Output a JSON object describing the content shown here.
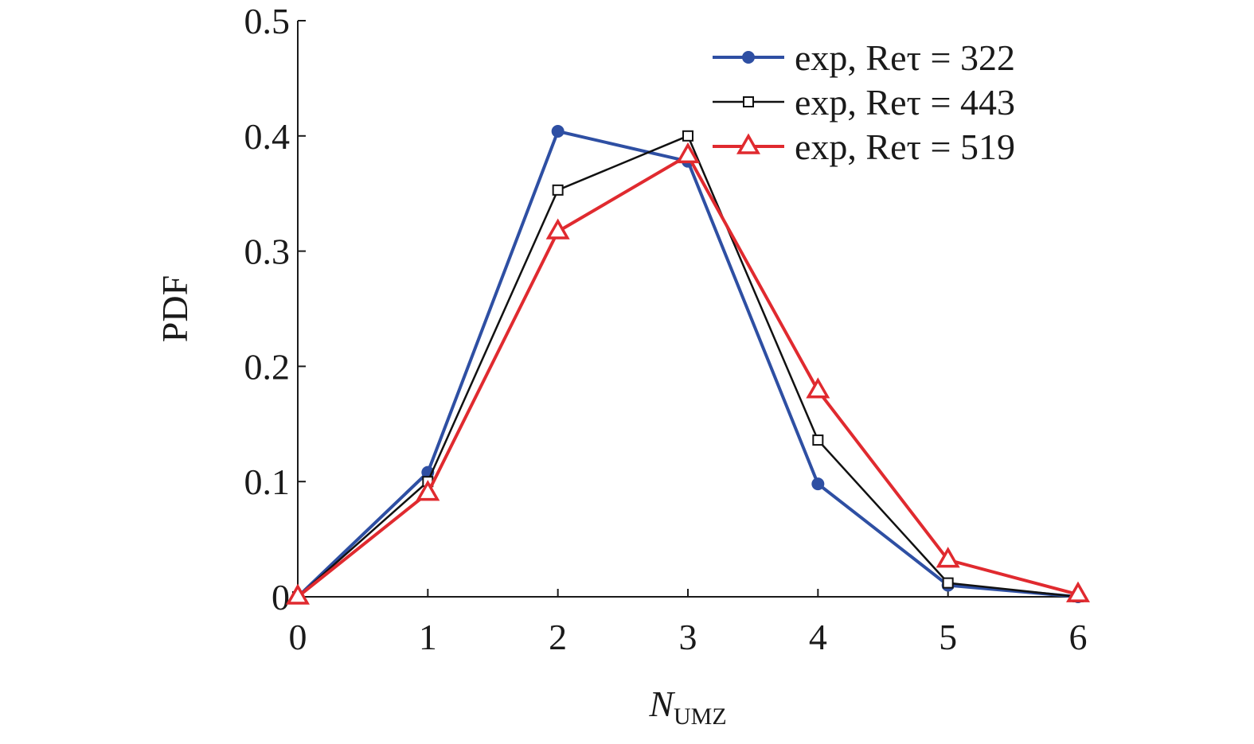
{
  "chart_data": {
    "type": "line",
    "xlabel": {
      "text": "N",
      "subscript": "UMZ"
    },
    "ylabel": "PDF",
    "x": [
      0,
      1,
      2,
      3,
      4,
      5,
      6
    ],
    "series": [
      {
        "name": "exp, Reτ = 322",
        "color": "#2e4fa3",
        "marker": "circle",
        "values": [
          0,
          0.108,
          0.404,
          0.378,
          0.098,
          0.01,
          0
        ]
      },
      {
        "name": "exp, Reτ = 443",
        "color": "#111111",
        "marker": "square",
        "values": [
          0,
          0.1,
          0.353,
          0.4,
          0.136,
          0.012,
          0
        ]
      },
      {
        "name": "exp, Reτ = 519",
        "color": "#e02a2f",
        "marker": "triangle",
        "values": [
          0,
          0.09,
          0.317,
          0.383,
          0.179,
          0.032,
          0.002
        ]
      }
    ],
    "xlim": [
      0,
      6
    ],
    "xticks": [
      0,
      1,
      2,
      3,
      4,
      5,
      6
    ],
    "ylim": [
      0,
      0.5
    ],
    "yticks": [
      0,
      0.1,
      0.2,
      0.3,
      0.4,
      0.5
    ],
    "legend": "upper right"
  }
}
